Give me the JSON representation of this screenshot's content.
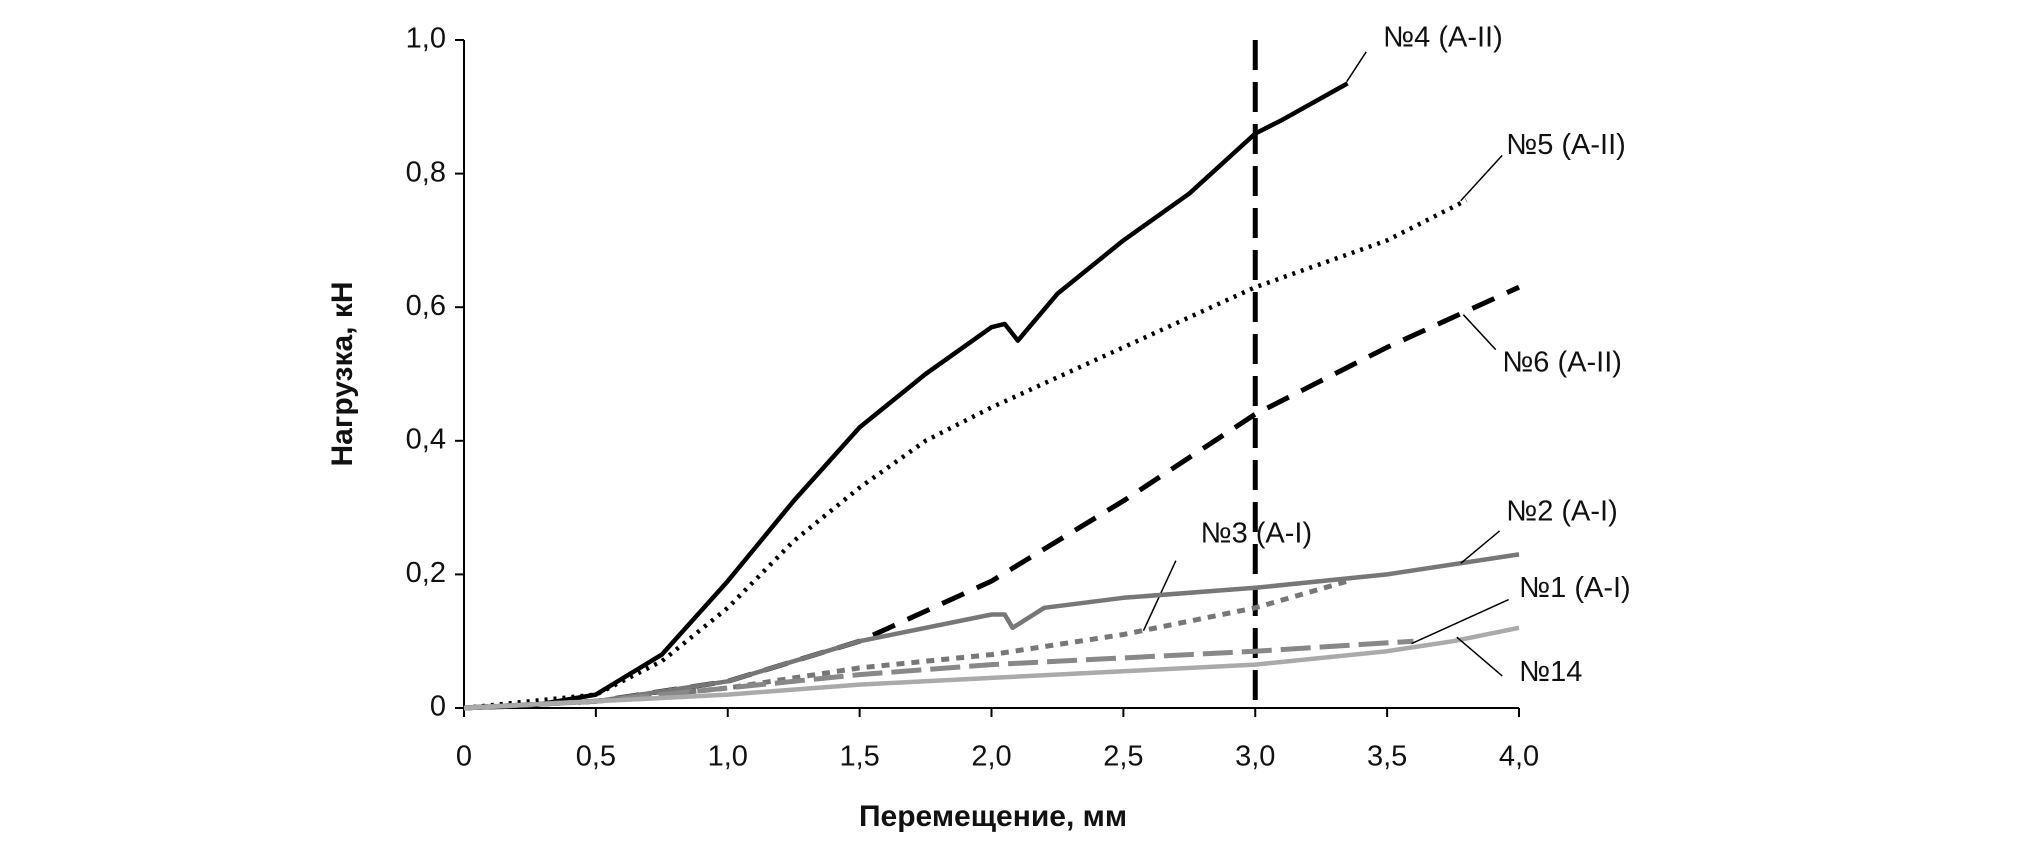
{
  "chart_data": {
    "type": "line",
    "x_label": "Перемещение, мм",
    "y_label": "Нагрузка, кН",
    "xlim": [
      0,
      4
    ],
    "ylim": [
      0,
      1
    ],
    "xticks": [
      0,
      {
        "value": 0.5,
        "label": "0,5"
      },
      {
        "value": 1,
        "label": "1,0"
      },
      {
        "value": 1.5,
        "label": "1,5"
      },
      {
        "value": 2,
        "label": "2,0"
      },
      {
        "value": 2.5,
        "label": "2,5"
      },
      {
        "value": 3,
        "label": "3,0"
      },
      {
        "value": 3.5,
        "label": "3,5"
      },
      {
        "value": 4,
        "label": "4,0"
      }
    ],
    "yticks": [
      0,
      {
        "value": 0.2,
        "label": "0,2"
      },
      {
        "value": 0.4,
        "label": "0,4"
      },
      {
        "value": 0.6,
        "label": "0,6"
      },
      {
        "value": 0.8,
        "label": "0,8"
      },
      {
        "value": 1,
        "label": "1,0"
      }
    ],
    "vline": 3,
    "series": [
      {
        "name": "№4 (A-II)",
        "color": "#000000",
        "style": "solid",
        "x": [
          0,
          0.25,
          0.5,
          0.75,
          1.0,
          1.25,
          1.5,
          1.75,
          2.0,
          2.05,
          2.1,
          2.25,
          2.5,
          2.75,
          3.0,
          3.1,
          3.35
        ],
        "values": [
          0,
          0.003,
          0.02,
          0.08,
          0.19,
          0.31,
          0.42,
          0.5,
          0.57,
          0.575,
          0.55,
          0.62,
          0.7,
          0.77,
          0.86,
          0.88,
          0.935
        ]
      },
      {
        "name": "№5 (A-II)",
        "color": "#000000",
        "style": "dotted",
        "x": [
          0,
          0.5,
          0.75,
          1.0,
          1.25,
          1.5,
          1.75,
          2.0,
          2.5,
          3.0,
          3.5,
          3.8
        ],
        "values": [
          0,
          0.02,
          0.07,
          0.15,
          0.25,
          0.33,
          0.4,
          0.45,
          0.54,
          0.63,
          0.7,
          0.76
        ]
      },
      {
        "name": "№6 (A-II)",
        "color": "#000000",
        "style": "dashed",
        "x": [
          0,
          0.5,
          1.0,
          1.5,
          2.0,
          2.5,
          3.0,
          3.5,
          4.0
        ],
        "values": [
          0,
          0.01,
          0.04,
          0.1,
          0.19,
          0.31,
          0.44,
          0.54,
          0.63
        ]
      },
      {
        "name": "№3 (A-I)",
        "color": "#777777",
        "style": "shortdash",
        "x": [
          0,
          0.5,
          1.0,
          1.5,
          2.0,
          2.5,
          3.0,
          3.35
        ],
        "values": [
          0,
          0.01,
          0.03,
          0.06,
          0.08,
          0.11,
          0.15,
          0.19
        ]
      },
      {
        "name": "№2 (A-I)",
        "color": "#777777",
        "style": "solid",
        "x": [
          0,
          0.5,
          1.0,
          1.5,
          2.0,
          2.05,
          2.08,
          2.2,
          2.5,
          3.0,
          3.5,
          4.0
        ],
        "values": [
          0,
          0.01,
          0.04,
          0.1,
          0.14,
          0.14,
          0.12,
          0.15,
          0.165,
          0.18,
          0.2,
          0.23
        ]
      },
      {
        "name": "№1 (A-I)",
        "color": "#888888",
        "style": "longdash",
        "x": [
          0,
          0.5,
          1.0,
          1.5,
          2.0,
          2.5,
          3.0,
          3.6
        ],
        "values": [
          0,
          0.01,
          0.03,
          0.05,
          0.065,
          0.075,
          0.085,
          0.1
        ]
      },
      {
        "name": "№14",
        "color": "#aaaaaa",
        "style": "solid",
        "x": [
          0,
          0.5,
          1.0,
          1.5,
          2.0,
          2.5,
          3.0,
          3.5,
          3.75,
          4.0
        ],
        "values": [
          0,
          0.01,
          0.02,
          0.035,
          0.045,
          0.055,
          0.065,
          0.085,
          0.1,
          0.12
        ]
      }
    ]
  }
}
